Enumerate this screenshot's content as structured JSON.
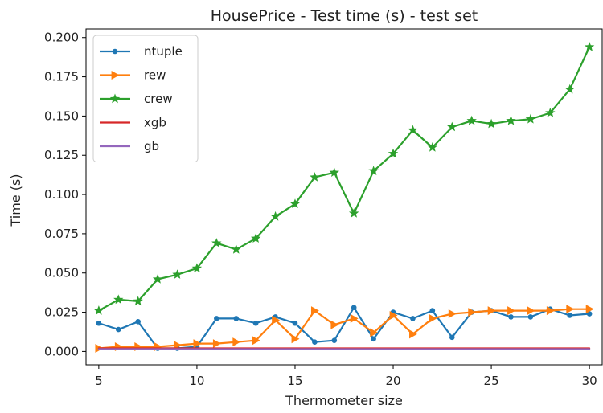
{
  "chart_data": {
    "type": "line",
    "title": "HousePrice - Test time (s) - test set",
    "xlabel": "Thermometer size",
    "ylabel": "Time (s)",
    "xlim": [
      4.35,
      30.65
    ],
    "ylim": [
      -0.0085,
      0.2055
    ],
    "x_ticks": [
      "5",
      "10",
      "15",
      "20",
      "25",
      "30"
    ],
    "y_ticks": [
      "0.000",
      "0.025",
      "0.050",
      "0.075",
      "0.100",
      "0.125",
      "0.150",
      "0.175",
      "0.200"
    ],
    "grid": false,
    "legend_position": "top-left",
    "x": [
      5,
      6,
      7,
      8,
      9,
      10,
      11,
      12,
      13,
      14,
      15,
      16,
      17,
      18,
      19,
      20,
      21,
      22,
      23,
      24,
      25,
      26,
      27,
      28,
      29,
      30
    ],
    "series": [
      {
        "name": "ntuple",
        "color": "#1f77b4",
        "marker": "point",
        "values": [
          0.018,
          0.014,
          0.019,
          0.002,
          0.002,
          0.003,
          0.021,
          0.021,
          0.018,
          0.022,
          0.018,
          0.006,
          0.007,
          0.028,
          0.008,
          0.025,
          0.021,
          0.026,
          0.009,
          0.025,
          0.026,
          0.022,
          0.022,
          0.027,
          0.023,
          0.024
        ]
      },
      {
        "name": "rew",
        "color": "#ff7f0e",
        "marker": "triangle-right",
        "values": [
          0.002,
          0.003,
          0.003,
          0.003,
          0.004,
          0.005,
          0.005,
          0.006,
          0.007,
          0.02,
          0.008,
          0.026,
          0.017,
          0.021,
          0.012,
          0.023,
          0.011,
          0.021,
          0.024,
          0.025,
          0.026,
          0.026,
          0.026,
          0.026,
          0.027,
          0.027
        ]
      },
      {
        "name": "crew",
        "color": "#2ca02c",
        "marker": "star",
        "values": [
          0.026,
          0.033,
          0.032,
          0.046,
          0.049,
          0.053,
          0.069,
          0.065,
          0.072,
          0.086,
          0.094,
          0.111,
          0.114,
          0.088,
          0.115,
          0.126,
          0.141,
          0.13,
          0.143,
          0.147,
          0.145,
          0.147,
          0.148,
          0.152,
          0.167,
          0.194
        ]
      },
      {
        "name": "xgb",
        "color": "#d62728",
        "marker": "none",
        "values": [
          0.002,
          0.002,
          0.002,
          0.002,
          0.002,
          0.002,
          0.002,
          0.002,
          0.002,
          0.002,
          0.002,
          0.002,
          0.002,
          0.002,
          0.002,
          0.002,
          0.002,
          0.002,
          0.002,
          0.002,
          0.002,
          0.002,
          0.002,
          0.002,
          0.002,
          0.002
        ]
      },
      {
        "name": "gb",
        "color": "#9467bd",
        "marker": "none",
        "values": [
          0.0015,
          0.0015,
          0.0015,
          0.0015,
          0.0015,
          0.0015,
          0.0015,
          0.0015,
          0.0015,
          0.0015,
          0.0015,
          0.0015,
          0.0015,
          0.0015,
          0.0015,
          0.0015,
          0.0015,
          0.0015,
          0.0015,
          0.0015,
          0.0015,
          0.0015,
          0.0015,
          0.0015,
          0.0015,
          0.0015
        ]
      }
    ]
  }
}
